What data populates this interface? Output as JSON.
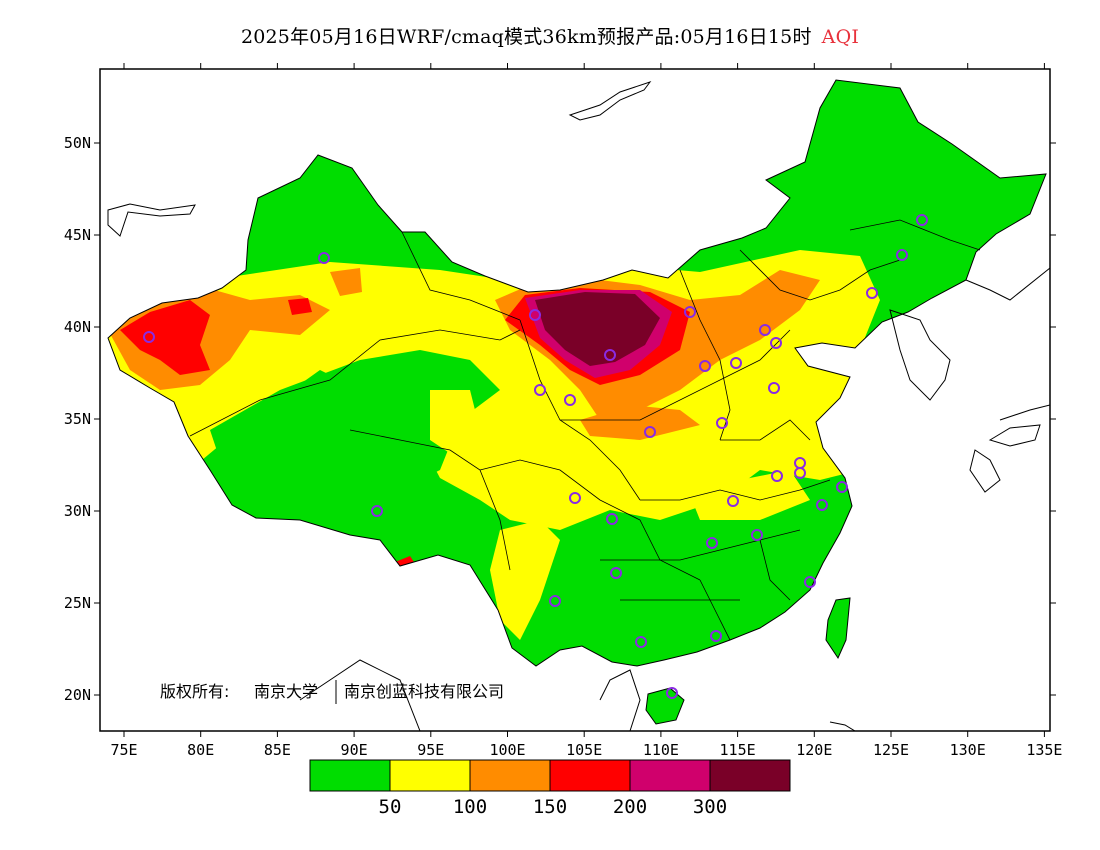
{
  "title": {
    "main": "2025年05月16日WRF/cmaq模式36km预报产品:05月16日15时",
    "variable": "AQI",
    "variable_color": "#e8323c"
  },
  "copyright": {
    "prefix": "版权所有:",
    "org1": "南京大学",
    "org2": "南京创蓝科技有限公司"
  },
  "axes": {
    "lon_ticks": [
      "75E",
      "80E",
      "85E",
      "90E",
      "95E",
      "100E",
      "105E",
      "110E",
      "115E",
      "120E",
      "125E",
      "130E",
      "135E"
    ],
    "lat_ticks": [
      "50N",
      "45N",
      "40N",
      "35N",
      "30N",
      "25N",
      "20N"
    ]
  },
  "colorbar": {
    "colors": [
      "#00dd00",
      "#ffff00",
      "#ff8c00",
      "#ff0000",
      "#d0006c",
      "#7a0028"
    ],
    "labels": [
      "50",
      "100",
      "150",
      "200",
      "300"
    ]
  },
  "legend_meaning": "AQI levels",
  "colors": {
    "good": "#00dd00",
    "moderate": "#ffff00",
    "unhealthy_sensitive": "#ff8c00",
    "unhealthy": "#ff0000",
    "very_unhealthy": "#d0006c",
    "hazardous": "#7a0028",
    "station_marker": "#8a2be2"
  }
}
